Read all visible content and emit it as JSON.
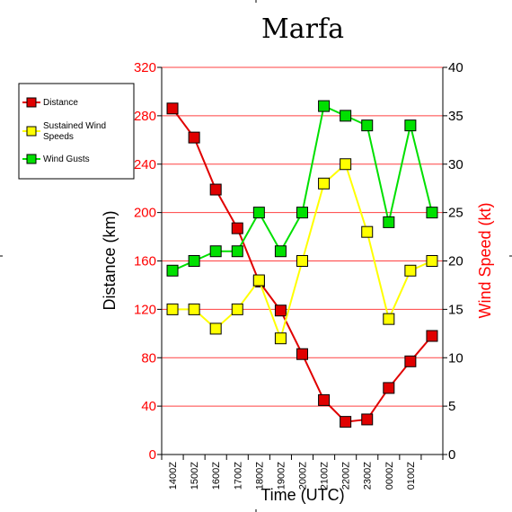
{
  "chart_data": {
    "type": "line",
    "title": "Marfa",
    "xlabel": "Time (UTC)",
    "ylabel_left": "Distance (km)",
    "ylabel_right": "Wind Speed (kt)",
    "categories": [
      "1400Z",
      "1500Z",
      "1600Z",
      "1700Z",
      "1800Z",
      "1900Z",
      "2000Z",
      "2100Z",
      "2200Z",
      "2300Z",
      "0000Z",
      "0100Z",
      ""
    ],
    "ylim_left": [
      0,
      320
    ],
    "ylim_right": [
      0,
      40
    ],
    "yticks_left": [
      0,
      40,
      80,
      120,
      160,
      200,
      240,
      280,
      320
    ],
    "yticks_right": [
      0,
      5,
      10,
      15,
      20,
      25,
      30,
      35,
      40
    ],
    "grid": true,
    "legend_position": "left",
    "series": [
      {
        "name": "Distance",
        "axis": "left",
        "color": "#e00000",
        "marker": "#e00000",
        "values": [
          286,
          262,
          219,
          187,
          143,
          119,
          83,
          45,
          27,
          29,
          55,
          77,
          98
        ]
      },
      {
        "name": "Sustained Wind Speeds",
        "axis": "right",
        "color": "#ffff00",
        "marker": "#ffff00",
        "values": [
          15,
          15,
          13,
          15,
          18,
          12,
          20,
          28,
          30,
          23,
          14,
          19,
          20
        ]
      },
      {
        "name": "Wind Gusts",
        "axis": "right",
        "color": "#00e000",
        "marker": "#00e000",
        "values": [
          19,
          20,
          21,
          21,
          25,
          21,
          25,
          36,
          35,
          34,
          24,
          34,
          25
        ]
      }
    ]
  },
  "colors": {
    "left_axis": "#ff0000",
    "right_axis": "#000000",
    "gridline": "#ff4040",
    "wind_speed_label": "#ff0000"
  }
}
